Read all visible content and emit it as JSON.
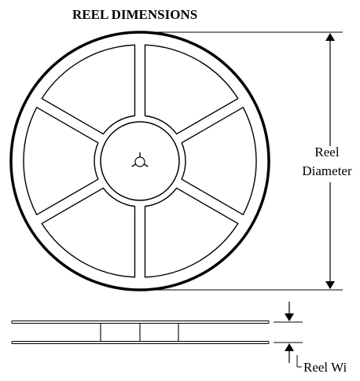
{
  "title": "REEL DIMENSIONS",
  "labels": {
    "reel_line1": "Reel",
    "reel_line2": "Diameter",
    "reel_width": "Reel Wi"
  },
  "colors": {
    "stroke": "#000000",
    "background": "#ffffff"
  },
  "reel": {
    "spokes": 6
  }
}
